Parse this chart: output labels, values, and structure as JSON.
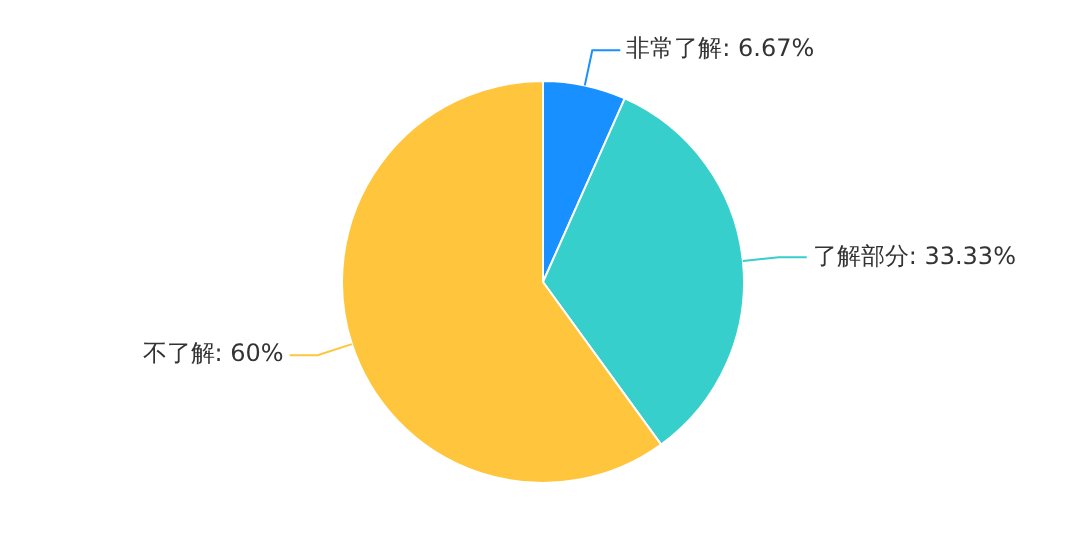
{
  "chart_data": {
    "type": "pie",
    "categories": [
      "非常了解",
      "了解部分",
      "不了解"
    ],
    "values": [
      6.67,
      33.33,
      60
    ],
    "colors": [
      "#1890ff",
      "#36cfcb",
      "#ffc53d"
    ],
    "value_labels": [
      "6.67%",
      "33.33%",
      "60%"
    ],
    "legend": false
  }
}
